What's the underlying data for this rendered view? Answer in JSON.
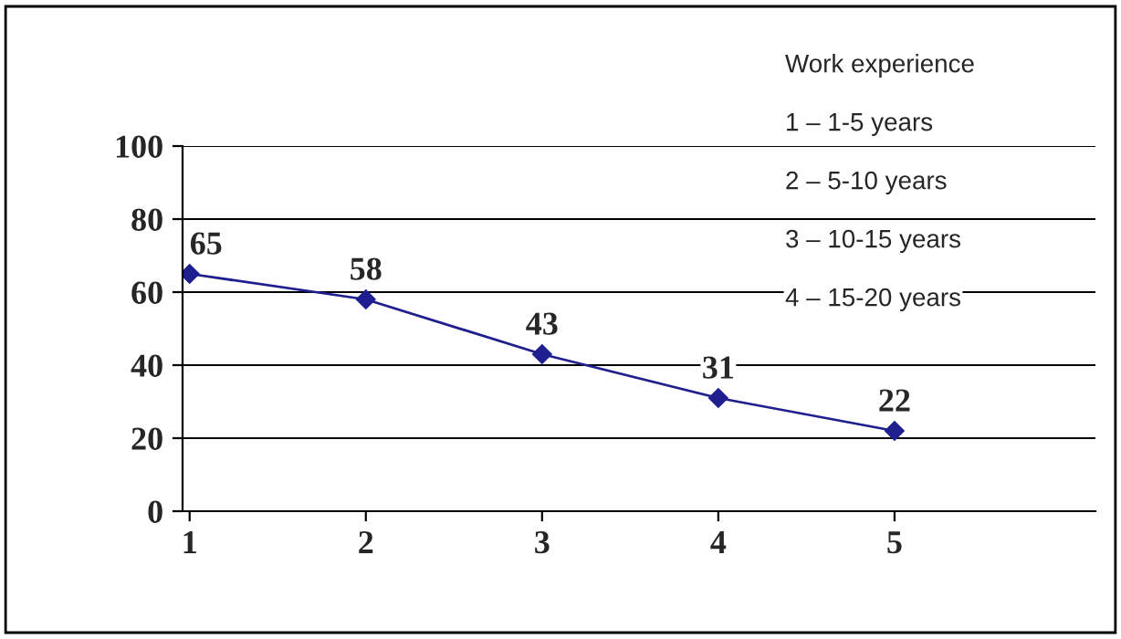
{
  "chart_data": {
    "type": "line",
    "categories": [
      "1",
      "2",
      "3",
      "4",
      "5"
    ],
    "series": [
      {
        "color": "#1f1f8f",
        "values": [
          65,
          58,
          43,
          31,
          22
        ]
      }
    ],
    "ylim": [
      0,
      100
    ],
    "yticks": [
      0,
      20,
      40,
      60,
      80,
      100
    ],
    "grid": "y",
    "marker": "diamond",
    "line_style": "solid",
    "data_labels": true,
    "legend": false,
    "annotations": [
      "Work experience",
      "1 – 1-5 years",
      "2 – 5-10 years",
      "3 – 10-15 years",
      "4 – 15-20 years"
    ]
  }
}
